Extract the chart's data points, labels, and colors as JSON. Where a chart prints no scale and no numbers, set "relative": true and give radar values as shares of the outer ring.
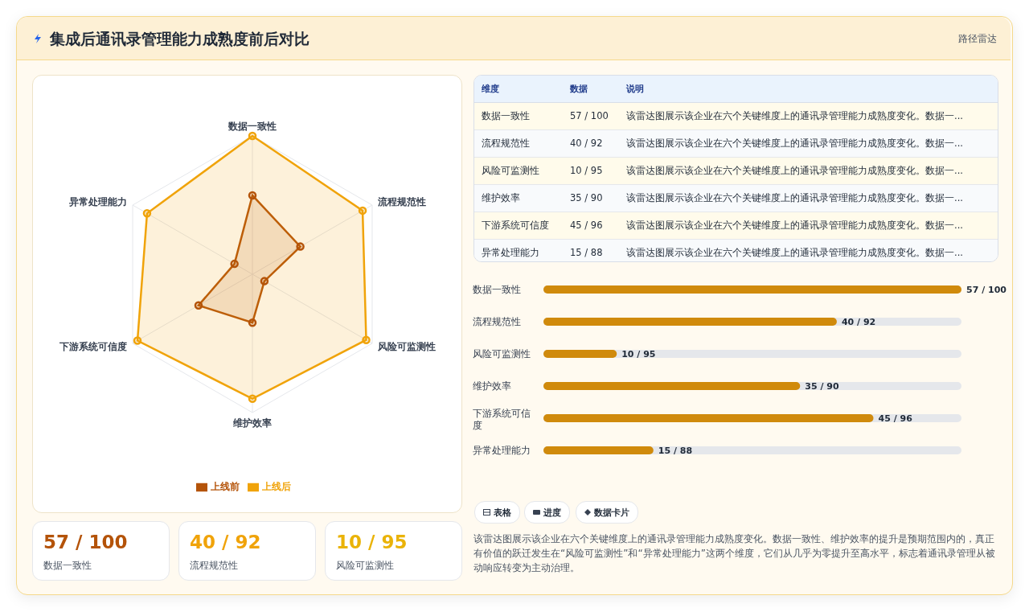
{
  "chart_data": [
    {
      "type": "radar",
      "title": "集成后通讯录管理能力成熟度前后对比",
      "annotations": [
        "路径雷达"
      ],
      "categories": [
        "数据一致性",
        "流程规范性",
        "风险可监测性",
        "维护效率",
        "下游系统可信度",
        "异常处理能力"
      ],
      "series": [
        {
          "name": "上线前",
          "color": "#b45309",
          "values": [
            0.57,
            0.4,
            0.1,
            0.35,
            0.45,
            0.15
          ]
        },
        {
          "name": "上线后",
          "color": "#f0a30a",
          "values": [
            1,
            0.92,
            0.95,
            0.9,
            0.96,
            0.88
          ]
        }
      ],
      "relative": true,
      "legend": "bottom",
      "marker": "circle"
    },
    {
      "type": "bar",
      "orientation": "horizontal",
      "categories": [
        "数据一致性",
        "流程规范性",
        "风险可监测性",
        "维护效率",
        "下游系统可信度",
        "异常处理能力"
      ],
      "values": [
        57,
        40,
        10,
        35,
        45,
        15
      ],
      "value_labels": [
        "57 / 100",
        "40 / 92",
        "10 / 95",
        "35 / 90",
        "45 / 96",
        "15 / 88"
      ],
      "color": "#d08a0c",
      "tick_labels": "y"
    },
    {
      "type": "other",
      "annotations": [
        "维度",
        "数据",
        "说明",
        "数据一致性",
        "57 / 100",
        "该雷达图展示该企业在六个关键维度上的通讯录管理能力成熟度变化。数据一...",
        "流程规范性",
        "40 / 92",
        "该雷达图展示该企业在六个关键维度上的通讯录管理能力成熟度变化。数据一...",
        "风险可监测性",
        "10 / 95",
        "该雷达图展示该企业在六个关键维度上的通讯录管理能力成熟度变化。数据一...",
        "维护效率",
        "35 / 90",
        "该雷达图展示该企业在六个关键维度上的通讯录管理能力成熟度变化。数据一...",
        "下游系统可信度",
        "45 / 96",
        "该雷达图展示该企业在六个关键维度上的通讯录管理能力成熟度变化。数据一...",
        "异常处理能力",
        "15 / 88",
        "该雷达图展示该企业在六个关键维度上的通讯录管理能力成熟度变化。数据一...",
        "57 / 100",
        "数据一致性",
        "40 / 92",
        "流程规范性",
        "10 / 95",
        "风险可监测性",
        "表格",
        "进度",
        "数据卡片",
        "该雷达图展示该企业在六个关键维度上的通讯录管理能力成熟度变化。数据一致性、维护效率的提升是预期范围内的，真正有价值的跃迁发生在“风险可监测性”和“异常处理能力”这两个维度，它们从几乎为零提升至高水平，标志着通讯录管理从被动响应转变为主动治理。"
      ]
    }
  ]
}
